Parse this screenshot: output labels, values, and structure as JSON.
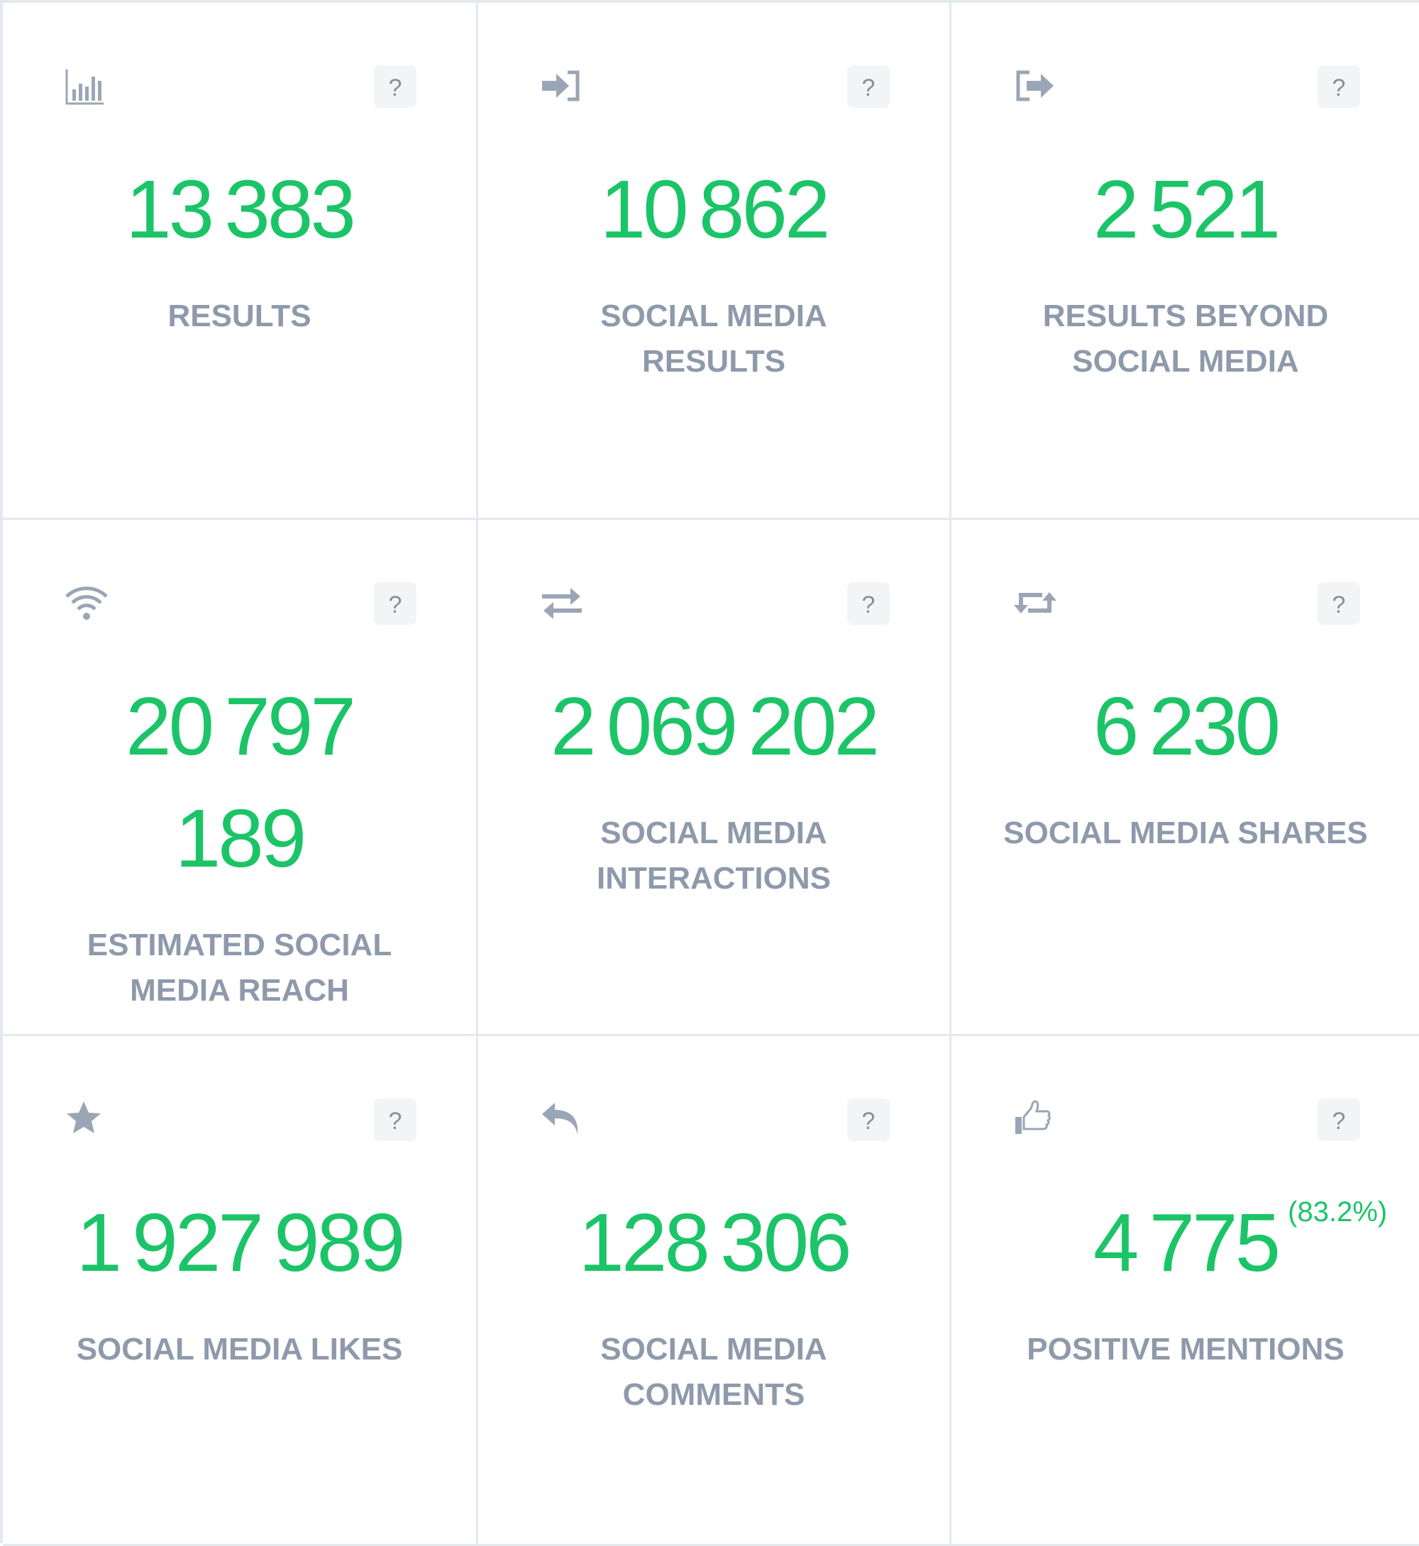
{
  "help_label": "?",
  "colors": {
    "value": "#1cc468",
    "label": "#8e9aab",
    "icon": "#9aa6b5",
    "border": "#e4e9ee"
  },
  "cards": [
    {
      "icon": "bar-chart-icon",
      "value": "13 383",
      "label": "RESULTS"
    },
    {
      "icon": "sign-in-icon",
      "value": "10 862",
      "label": "SOCIAL MEDIA RESULTS"
    },
    {
      "icon": "sign-out-icon",
      "value": "2 521",
      "label": "RESULTS BEYOND SOCIAL MEDIA"
    },
    {
      "icon": "wifi-icon",
      "value": "20 797 189",
      "label": "ESTIMATED SOCIAL MEDIA REACH"
    },
    {
      "icon": "exchange-icon",
      "value": "2 069 202",
      "label": "SOCIAL MEDIA INTERACTIONS"
    },
    {
      "icon": "retweet-icon",
      "value": "6 230",
      "label": "SOCIAL MEDIA SHARES"
    },
    {
      "icon": "star-icon",
      "value": "1 927 989",
      "label": "SOCIAL MEDIA LIKES"
    },
    {
      "icon": "reply-icon",
      "value": "128 306",
      "label": "SOCIAL MEDIA COMMENTS"
    },
    {
      "icon": "thumbs-up-icon",
      "value": "4 775",
      "percent": "(83.2%)",
      "label": "POSITIVE MENTIONS"
    }
  ]
}
